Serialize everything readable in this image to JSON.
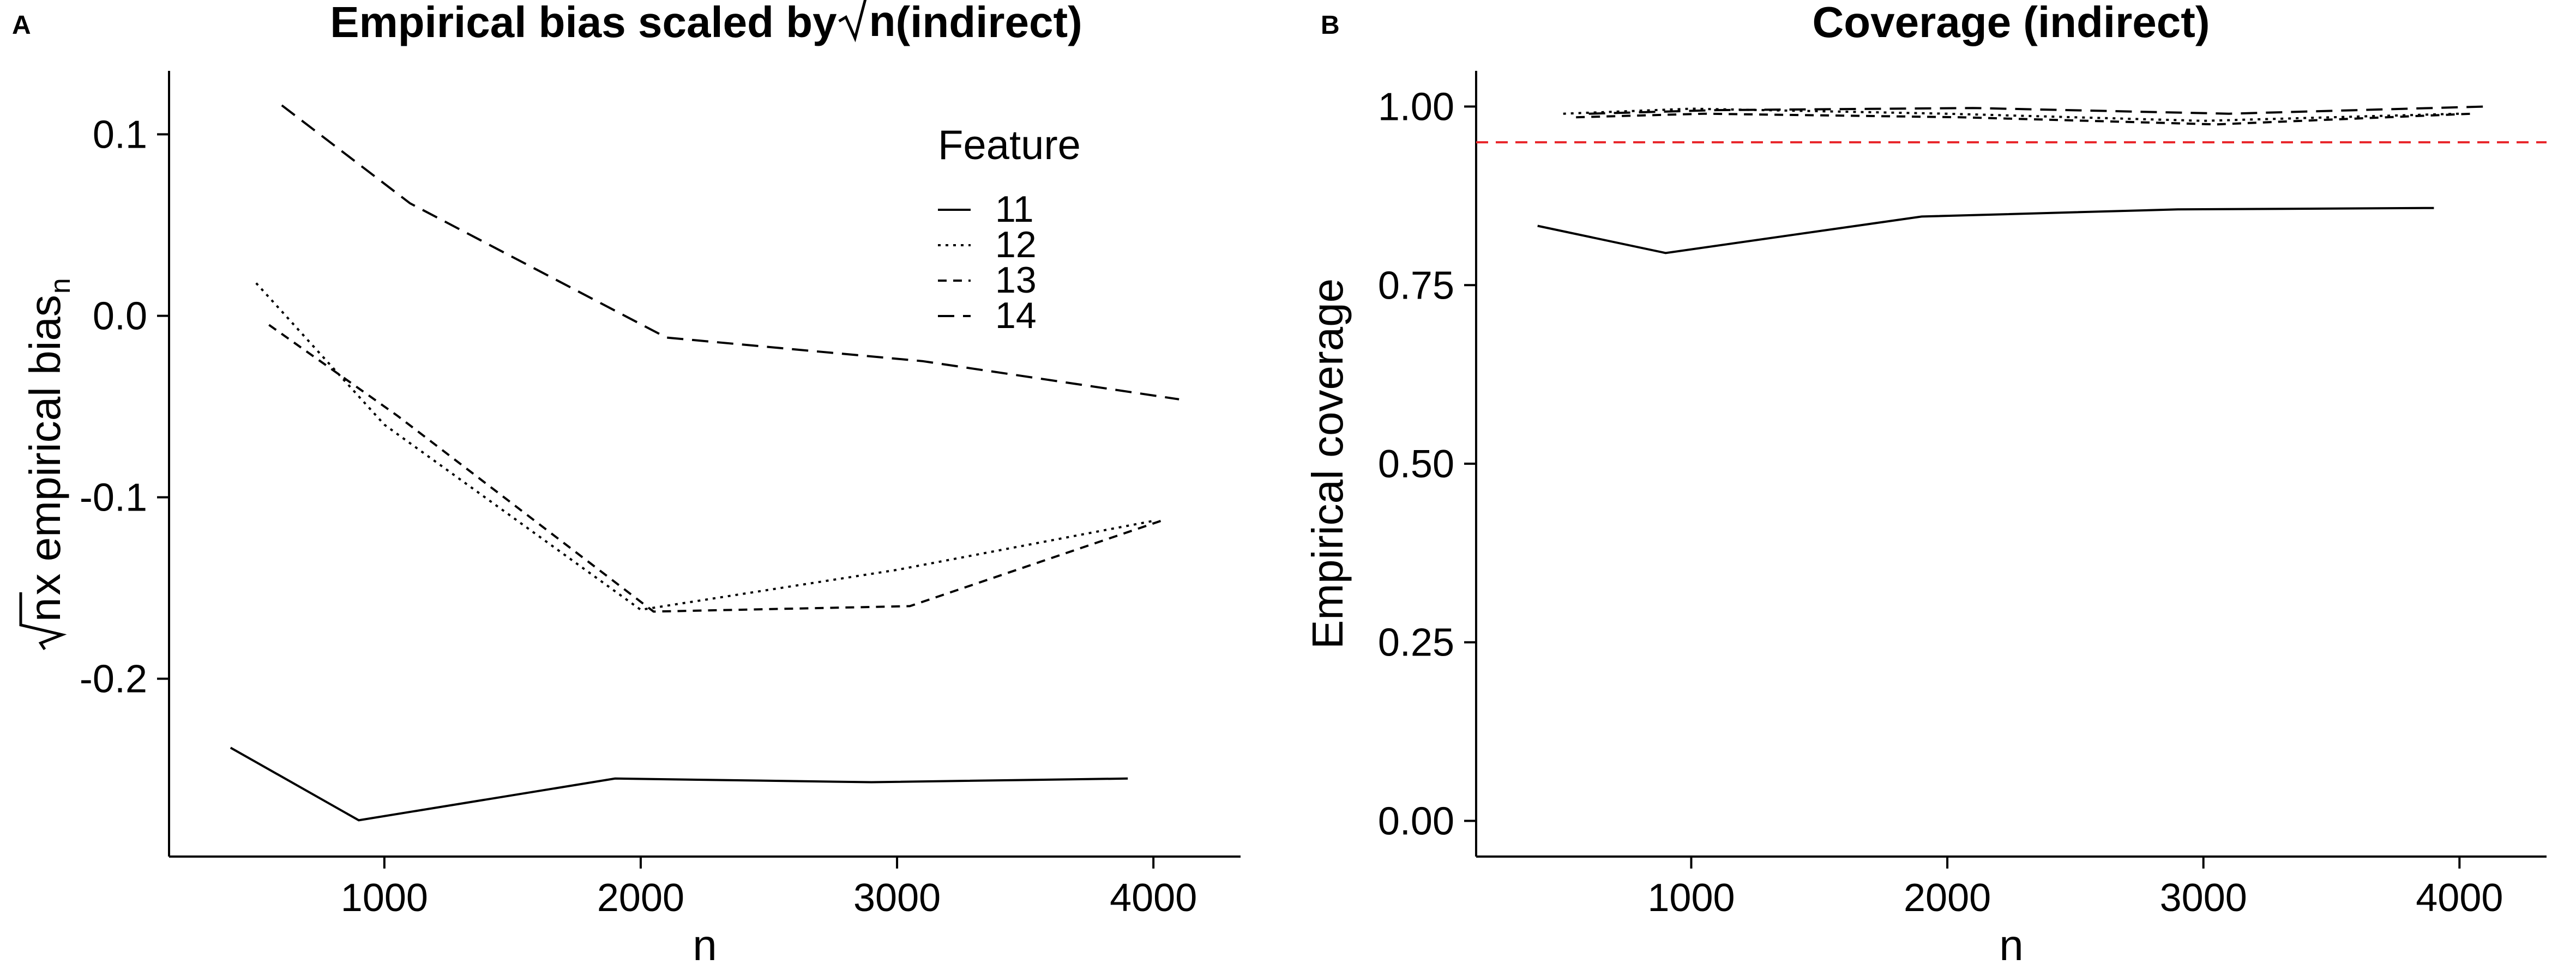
{
  "chart_data": [
    {
      "panel_tag": "A",
      "type": "line",
      "title_prefix": "Empirical bias scaled by ",
      "title_sqrt_arg": "n",
      "title_suffix": " (indirect)",
      "xlabel": "n",
      "ylabel_sqrt_arg": "n",
      "ylabel_main": "x empirical bias",
      "ylabel_subscript": "n",
      "xlim": [
        160,
        4340
      ],
      "ylim": [
        -0.298,
        0.135
      ],
      "x_ticks": [
        1000,
        2000,
        3000,
        4000
      ],
      "x_tick_labels": [
        "1000",
        "2000",
        "3000",
        "4000"
      ],
      "y_ticks": [
        0.1,
        0.0,
        -0.1,
        -0.2
      ],
      "y_tick_labels": [
        "0.1",
        "0.0",
        "-0.1",
        "-0.2"
      ],
      "legend": {
        "title": "Feature",
        "placement": "top-right",
        "entries": [
          "11",
          "12",
          "13",
          "14"
        ]
      },
      "series": [
        {
          "name": "11",
          "dash": "solid",
          "x": [
            400,
            900,
            1900,
            2900,
            3900
          ],
          "y": [
            -0.238,
            -0.278,
            -0.255,
            -0.257,
            -0.255
          ]
        },
        {
          "name": "12",
          "dash": "dotted",
          "x": [
            500,
            1000,
            2000,
            3000,
            4000
          ],
          "y": [
            0.018,
            -0.06,
            -0.162,
            -0.14,
            -0.113
          ]
        },
        {
          "name": "13",
          "dash": "dashed",
          "x": [
            550,
            1050,
            2050,
            3050,
            4050
          ],
          "y": [
            -0.005,
            -0.055,
            -0.163,
            -0.16,
            -0.112
          ]
        },
        {
          "name": "14",
          "dash": "longdash",
          "x": [
            600,
            1100,
            2100,
            3100,
            4100
          ],
          "y": [
            0.116,
            0.062,
            -0.012,
            -0.025,
            -0.046
          ]
        }
      ]
    },
    {
      "panel_tag": "B",
      "type": "line",
      "title": "Coverage (indirect)",
      "xlabel": "n",
      "ylabel": "Empirical coverage",
      "xlim": [
        160,
        4340
      ],
      "ylim": [
        -0.05,
        1.05
      ],
      "x_ticks": [
        1000,
        2000,
        3000,
        4000
      ],
      "x_tick_labels": [
        "1000",
        "2000",
        "3000",
        "4000"
      ],
      "y_ticks": [
        0.0,
        0.25,
        0.5,
        0.75,
        1.0
      ],
      "y_tick_labels": [
        "0.00",
        "0.25",
        "0.50",
        "0.75",
        "1.00"
      ],
      "reference_line": {
        "y": 0.95,
        "color": "#e8252a"
      },
      "series": [
        {
          "name": "11",
          "dash": "solid",
          "x": [
            400,
            900,
            1900,
            2900,
            3900
          ],
          "y": [
            0.833,
            0.795,
            0.846,
            0.856,
            0.858
          ]
        },
        {
          "name": "12",
          "dash": "dotted",
          "x": [
            500,
            1000,
            2000,
            3000,
            4000
          ],
          "y": [
            0.99,
            0.997,
            0.99,
            0.98,
            0.99
          ]
        },
        {
          "name": "13",
          "dash": "dashed",
          "x": [
            550,
            1050,
            2050,
            3050,
            4050
          ],
          "y": [
            0.985,
            0.99,
            0.985,
            0.975,
            0.99
          ]
        },
        {
          "name": "14",
          "dash": "longdash",
          "x": [
            600,
            1100,
            2100,
            3100,
            4100
          ],
          "y": [
            0.99,
            0.995,
            0.998,
            0.99,
            1.0
          ]
        }
      ]
    }
  ]
}
